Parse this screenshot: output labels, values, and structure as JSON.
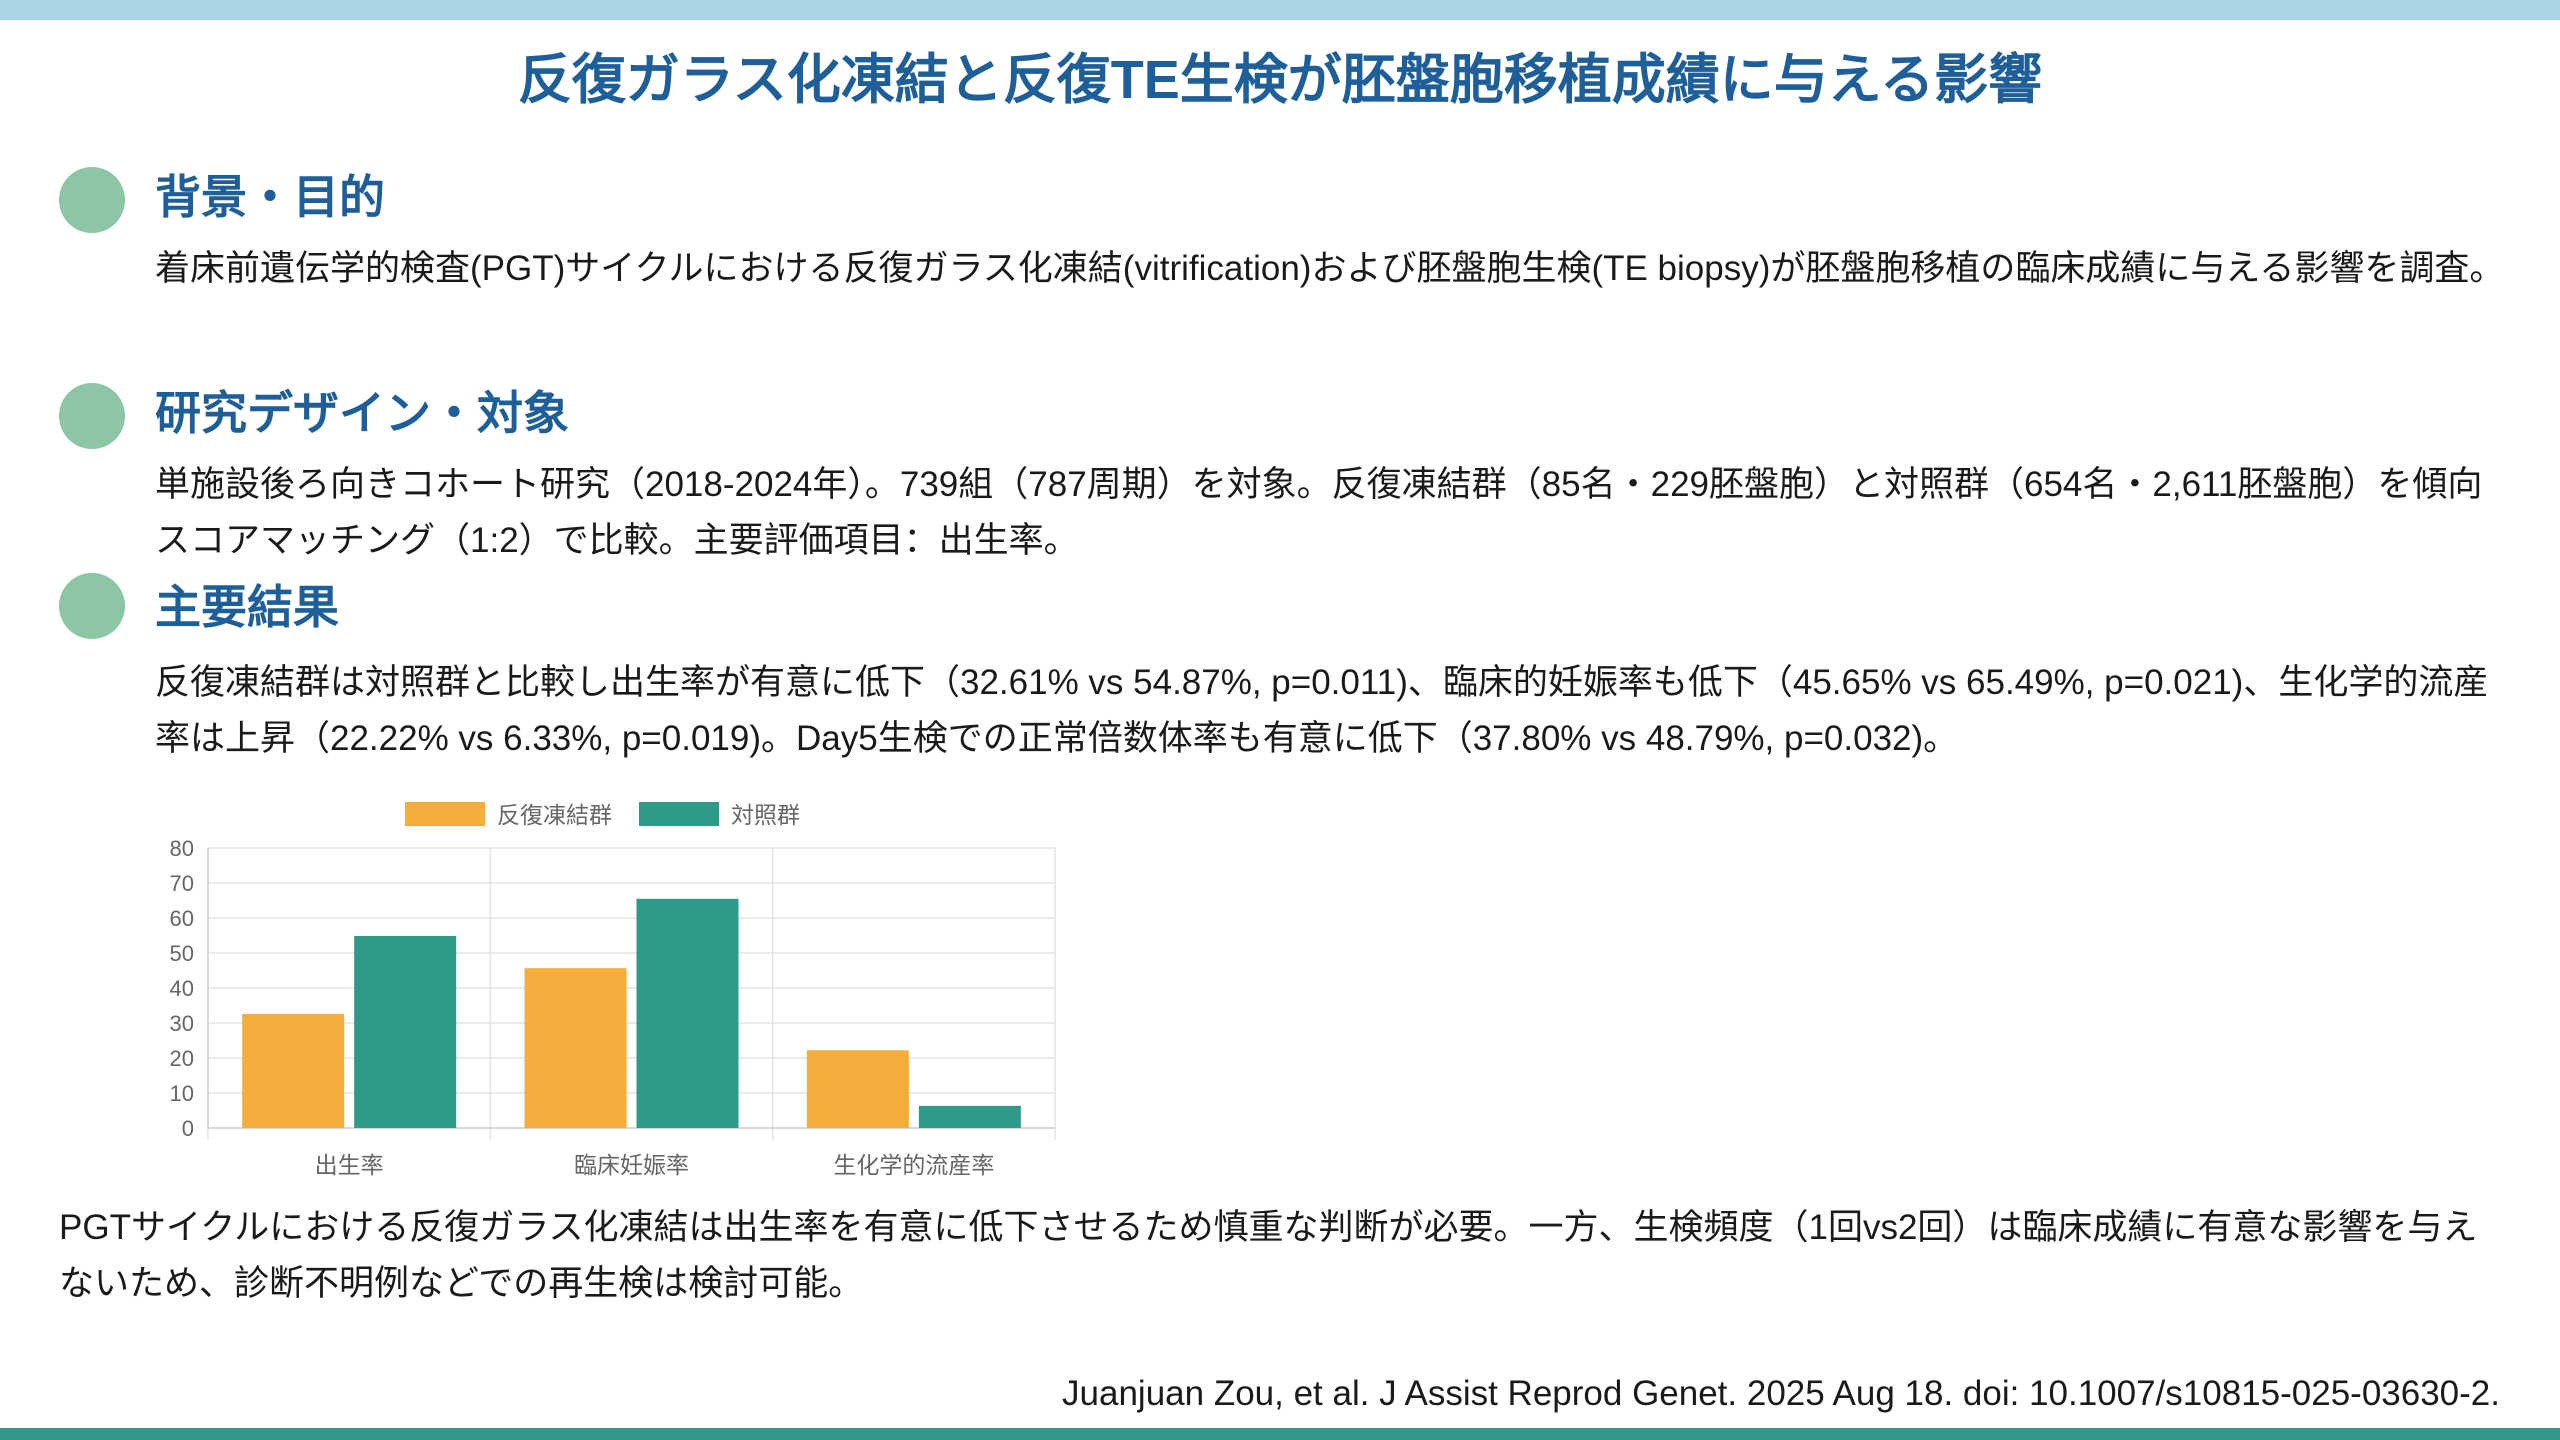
{
  "title": "反復ガラス化凍結と反復TE生検が胚盤胞移植成績に与える影響",
  "sections": [
    {
      "heading": "背景・目的",
      "body": "着床前遺伝学的検査(PGT)サイクルにおける反復ガラス化凍結(vitrification)および胚盤胞生検(TE biopsy)が胚盤胞移植の臨床成績に与える影響を調査。"
    },
    {
      "heading": "研究デザイン・対象",
      "body": "単施設後ろ向きコホート研究（2018-2024年）。739組（787周期）を対象。反復凍結群（85名・229胚盤胞）と対照群（654名・2,611胚盤胞）を傾向スコアマッチング（1:2）で比較。主要評価項目：出生率。"
    },
    {
      "heading": "主要結果",
      "body": "反復凍結群は対照群と比較し出生率が有意に低下（32.61% vs 54.87%, p=0.011)、臨床的妊娠率も低下（45.65% vs 65.49%, p=0.021)、生化学的流産率は上昇（22.22% vs 6.33%, p=0.019)。Day5生検での正常倍数体率も有意に低下（37.80% vs 48.79%, p=0.032)。"
    }
  ],
  "conclusion": "PGTサイクルにおける反復ガラス化凍結は出生率を有意に低下させるため慎重な判断が必要。一方、生検頻度（1回vs2回）は臨床成績に有意な影響を与えないため、診断不明例などでの再生検は検討可能。",
  "citation": "Juanjuan Zou, et al. J Assist Reprod Genet. 2025 Aug 18.  doi: 10.1007/s10815-025-03630-2.",
  "colors": {
    "title": "#1e5f99",
    "bullet": "#8cc6a4",
    "top_bar": "#a8d4e3",
    "bottom_bar": "#2f9a8a",
    "series_repeat": "#f5ae3c",
    "series_control": "#2e9a88"
  },
  "chart_data": {
    "type": "bar",
    "categories": [
      "出生率",
      "臨床妊娠率",
      "生化学的流産率"
    ],
    "series": [
      {
        "name": "反復凍結群",
        "values": [
          32.61,
          45.65,
          22.22
        ]
      },
      {
        "name": "対照群",
        "values": [
          54.87,
          65.49,
          6.33
        ]
      }
    ],
    "ylim": [
      0,
      80
    ],
    "yticks": [
      0,
      10,
      20,
      30,
      40,
      50,
      60,
      70,
      80
    ],
    "grid": true,
    "legend": "top-center"
  }
}
